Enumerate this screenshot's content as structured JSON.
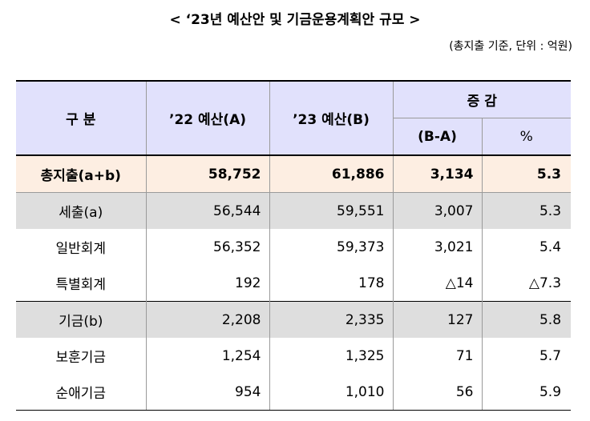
{
  "title": "< ‘23년 예산안 및 기금운용계획안 규모 >",
  "unit_note": "(총지출 기준, 단위 : 억원)",
  "table": {
    "headers": {
      "category": "구 분",
      "col_a": "’22 예산(A)",
      "col_b": "’23 예산(B)",
      "change": "증    감",
      "diff": "(B-A)",
      "pct": "%"
    },
    "rows": [
      {
        "label": "총지출(a+b)",
        "a": "58,752",
        "b": "61,886",
        "diff": "3,134",
        "pct": "5.3"
      },
      {
        "label": "세출(a)",
        "a": "56,544",
        "b": "59,551",
        "diff": "3,007",
        "pct": "5.3"
      },
      {
        "label": "일반회계",
        "a": "56,352",
        "b": "59,373",
        "diff": "3,021",
        "pct": "5.4"
      },
      {
        "label": "특별회계",
        "a": "192",
        "b": "178",
        "diff": "△14",
        "pct": "△7.3"
      },
      {
        "label": "기금(b)",
        "a": "2,208",
        "b": "2,335",
        "diff": "127",
        "pct": "5.8"
      },
      {
        "label": "보훈기금",
        "a": "1,254",
        "b": "1,325",
        "diff": "71",
        "pct": "5.7"
      },
      {
        "label": "순애기금",
        "a": "954",
        "b": "1,010",
        "diff": "56",
        "pct": "5.9"
      }
    ]
  }
}
